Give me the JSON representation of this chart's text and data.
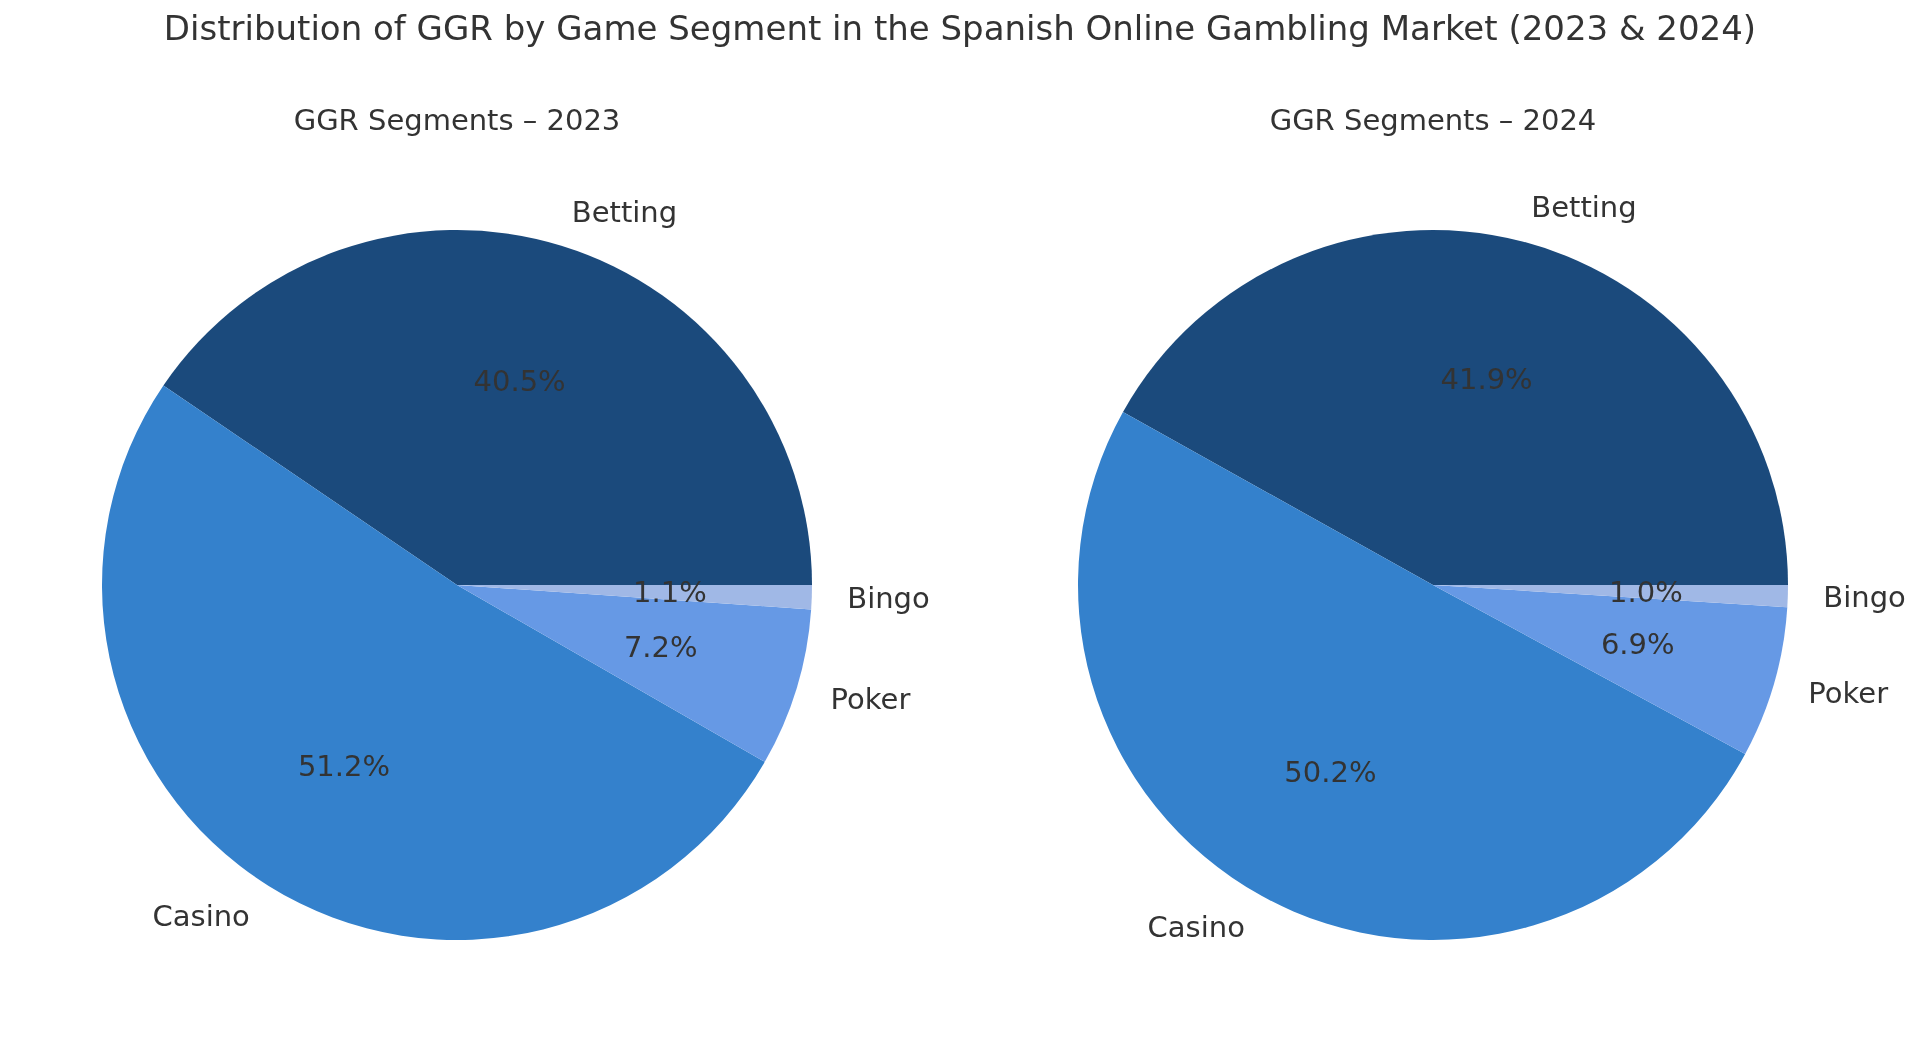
{
  "chart_data": [
    {
      "type": "pie",
      "title": "Distribution of GGR by Game Segment in the Spanish Online Gambling Market (2023 & 2024)",
      "subtitle": "GGR Segments – 2023",
      "categories": [
        "Betting",
        "Casino",
        "Poker",
        "Bingo"
      ],
      "values": [
        40.5,
        51.2,
        7.2,
        1.1
      ],
      "colors": [
        "#1b4a7c",
        "#3481cc",
        "#6699e5",
        "#a0b8e6"
      ],
      "value_labels": [
        "40.5%",
        "51.2%",
        "7.2%",
        "1.1%"
      ]
    },
    {
      "type": "pie",
      "subtitle": "GGR Segments – 2024",
      "categories": [
        "Betting",
        "Casino",
        "Poker",
        "Bingo"
      ],
      "values": [
        41.9,
        50.2,
        6.9,
        1.0
      ],
      "colors": [
        "#1b4a7c",
        "#3481cc",
        "#6699e5",
        "#a0b8e6"
      ],
      "value_labels": [
        "41.9%",
        "50.2%",
        "6.9%",
        "1.0%"
      ]
    }
  ]
}
